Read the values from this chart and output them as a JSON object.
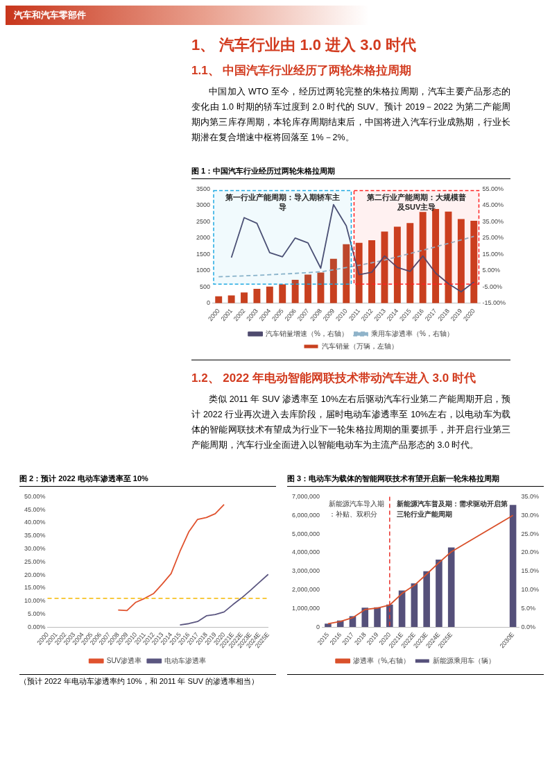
{
  "chart_data": [
    {
      "type": "other",
      "title": "汽车和汽车零部件"
    },
    {
      "type": "other",
      "title": "1、 汽车行业由 1.0 进入 3.0 时代",
      "subtitle": "1.1、 中国汽车行业经历了两轮朱格拉周期",
      "annotations": [
        "中国加入 WTO 至今，经历过两轮完整的朱格拉周期，汽车主要产品形态的变化由 1.0 时期的轿车过度到 2.0 时代的 SUV。预计 2019－2022 为第二产能周期内第三库存周期，本轮库存周期结束后，中国将进入汽车行业成熟期，行业长期潜在复合增速中枢将回落至 1%－2%。"
      ]
    },
    {
      "type": "bar",
      "title": "图 1：中国汽车行业经历过两轮朱格拉周期",
      "categories": [
        "2000",
        "2001",
        "2002",
        "2003",
        "2004",
        "2005",
        "2006",
        "2007",
        "2008",
        "2009",
        "2010",
        "2011",
        "2012",
        "2013",
        "2014",
        "2015",
        "2016",
        "2017",
        "2018",
        "2019",
        "2020"
      ],
      "series": [
        {
          "name": "汽车销量（万辆，左轴）",
          "type": "bar",
          "color": "#c8401f",
          "values": [
            210,
            240,
            330,
            440,
            510,
            580,
            720,
            880,
            940,
            1360,
            1810,
            1850,
            1930,
            2200,
            2350,
            2460,
            2800,
            2890,
            2810,
            2580,
            2530
          ]
        },
        {
          "name": "汽车销量增速（%，右轴）",
          "type": "line",
          "axis": "y2",
          "color": "#4e4a6e",
          "values": [
            null,
            13,
            37.5,
            34,
            16,
            13.5,
            25,
            22,
            6.5,
            45.5,
            32.5,
            2.5,
            4,
            14,
            7,
            4.5,
            14,
            3.5,
            -3,
            -8,
            -2
          ]
        },
        {
          "name": "乘用车渗透率（%，右轴）",
          "type": "line",
          "axis": "y2",
          "color": "#8fb3c9",
          "line_style": "dashed",
          "values": [
            1.2,
            1.5,
            1.8,
            2.1,
            2.5,
            2.9,
            3.3,
            3.8,
            4.3,
            5.5,
            6.9,
            8.3,
            9.8,
            11.5,
            13.5,
            15.5,
            17.5,
            19.6,
            21.7,
            23.8,
            26
          ]
        }
      ],
      "ylim": [
        0,
        3500
      ],
      "yticks": [
        0,
        500,
        1000,
        1500,
        2000,
        2500,
        3000,
        3500
      ],
      "y2lim": [
        -15,
        55
      ],
      "y2ticks": [
        {
          "value": -15,
          "label": "-15.00%"
        },
        {
          "value": -5,
          "label": "-5.00%"
        },
        {
          "value": 5,
          "label": "5.00%"
        },
        {
          "value": 15,
          "label": "15.00%"
        },
        {
          "value": 25,
          "label": "25.00%"
        },
        {
          "value": 35,
          "label": "35.00%"
        },
        {
          "value": 45,
          "label": "45.00%"
        },
        {
          "value": 55,
          "label": "55.00%"
        }
      ],
      "bands": [
        {
          "axis": "x",
          "from": "2000",
          "to": "2010",
          "label": "第一行业产能周期：导入期轿车主导",
          "color": "#1fa9e1"
        },
        {
          "axis": "x",
          "from": "2011",
          "to": "2020",
          "label": "第二行业产能周期：大规模普及SUV主导",
          "color": "#ff2020"
        }
      ],
      "marker": "none",
      "legend": "bottom"
    },
    {
      "type": "other",
      "subtitle": "1.2、 2022 年电动智能网联技术带动汽车进入 3.0 时代",
      "annotations": [
        "类似 2011 年 SUV 渗透率至 10%左右后驱动汽车行业第二产能周期开启，预计 2022 行业再次进入去库阶段，届时电动车渗透率至 10%左右，以电动车为载体的智能网联技术有望成为行业下一轮朱格拉周期的重要抓手，并开启行业第三产能周期，汽车行业全面进入以智能电动车为主流产品形态的 3.0 时代。"
      ]
    },
    {
      "type": "line",
      "title": "图 2：预计 2022 电动车渗透率至 10%",
      "categories": [
        "2000",
        "2001",
        "2002",
        "2003",
        "2004",
        "2005",
        "2006",
        "2007",
        "2008",
        "2009",
        "2010",
        "2011",
        "2012",
        "2013",
        "2014",
        "2015",
        "2016",
        "2017",
        "2018",
        "2019",
        "2020",
        "2021E",
        "2022E",
        "2023E",
        "2024E",
        "2025E"
      ],
      "series": [
        {
          "name": "SUV渗透率",
          "color": "#e0522e",
          "values": [
            null,
            null,
            null,
            null,
            null,
            null,
            null,
            null,
            6.5,
            6.3,
            9.5,
            11,
            12.8,
            16.5,
            20.5,
            29,
            36.5,
            41.3,
            42,
            43.5,
            47,
            null,
            null,
            null,
            null,
            null
          ]
        },
        {
          "name": "电动车渗透率",
          "color": "#5b5680",
          "values": [
            null,
            null,
            null,
            null,
            null,
            null,
            null,
            null,
            null,
            null,
            null,
            null,
            null,
            null,
            null,
            0.8,
            1.3,
            2.1,
            4.3,
            4.8,
            5.8,
            8.6,
            11.2,
            14.1,
            17.2,
            20.2
          ]
        }
      ],
      "ylim": [
        0,
        50
      ],
      "yticks": [
        {
          "value": 0,
          "label": "0.00%"
        },
        {
          "value": 5,
          "label": "5.00%"
        },
        {
          "value": 10,
          "label": "10.00%"
        },
        {
          "value": 15,
          "label": "15.00%"
        },
        {
          "value": 20,
          "label": "20.00%"
        },
        {
          "value": 25,
          "label": "25.00%"
        },
        {
          "value": 30,
          "label": "30.00%"
        },
        {
          "value": 35,
          "label": "35.00%"
        },
        {
          "value": 40,
          "label": "40.00%"
        },
        {
          "value": 45,
          "label": "45.00%"
        },
        {
          "value": 50,
          "label": "50.00%"
        }
      ],
      "ref_lines": [
        {
          "axis": "y",
          "value": 11,
          "color": "#f5b800",
          "line_style": "dashed"
        }
      ],
      "annotations": [
        "（预计 2022 年电动车渗透率约 10%，和 2011 年 SUV 的渗透率相当）"
      ],
      "marker": "none",
      "legend": "bottom"
    },
    {
      "type": "bar",
      "title": "图 3：电动车为载体的智能网联技术有望开启新一轮朱格拉周期",
      "categories": [
        "2015",
        "2016",
        "2017",
        "2018",
        "2019",
        "2020",
        "2021E",
        "2022E",
        "2023E",
        "2024E",
        "2025E",
        null,
        null,
        null,
        null,
        "2030E"
      ],
      "series": [
        {
          "name": "新能源乘用车（辆）",
          "type": "bar",
          "color": "#55507a",
          "values": [
            180000,
            350000,
            580000,
            1040000,
            1060000,
            1210000,
            1960000,
            2340000,
            3000000,
            3620000,
            4270000,
            null,
            null,
            null,
            null,
            6560000
          ]
        },
        {
          "name": "渗透率（%,右轴）",
          "type": "line",
          "axis": "y2",
          "color": "#d9502a",
          "values": [
            0.9,
            1.5,
            2.5,
            4.7,
            5.1,
            5.9,
            9,
            11.2,
            14.2,
            17.3,
            20.2,
            null,
            null,
            null,
            null,
            30
          ]
        }
      ],
      "ylim": [
        0,
        7000000
      ],
      "yticks": [
        {
          "value": 0,
          "label": "0"
        },
        {
          "value": 1000000,
          "label": "1,000,000"
        },
        {
          "value": 2000000,
          "label": "2,000,000"
        },
        {
          "value": 3000000,
          "label": "3,000,000"
        },
        {
          "value": 4000000,
          "label": "4,000,000"
        },
        {
          "value": 5000000,
          "label": "5,000,000"
        },
        {
          "value": 6000000,
          "label": "6,000,000"
        },
        {
          "value": 7000000,
          "label": "7,000,000"
        }
      ],
      "y2lim": [
        0,
        35
      ],
      "y2ticks": [
        {
          "value": 0,
          "label": "0.0%"
        },
        {
          "value": 5,
          "label": "5.0%"
        },
        {
          "value": 10,
          "label": "10.0%"
        },
        {
          "value": 15,
          "label": "15.0%"
        },
        {
          "value": 20,
          "label": "20.0%"
        },
        {
          "value": 25,
          "label": "25.0%"
        },
        {
          "value": 30,
          "label": "30.0%"
        },
        {
          "value": 35,
          "label": "35.0%"
        }
      ],
      "ref_lines": [
        {
          "axis": "x",
          "value": "2020",
          "color": "#e8302a",
          "line_style": "dashed"
        }
      ],
      "annotations": [
        "新能源汽车导入期：补贴、双积分",
        "新能源汽车普及期：需求驱动开启第三轮行业产能周期"
      ],
      "marker": "none",
      "legend": "bottom"
    }
  ]
}
